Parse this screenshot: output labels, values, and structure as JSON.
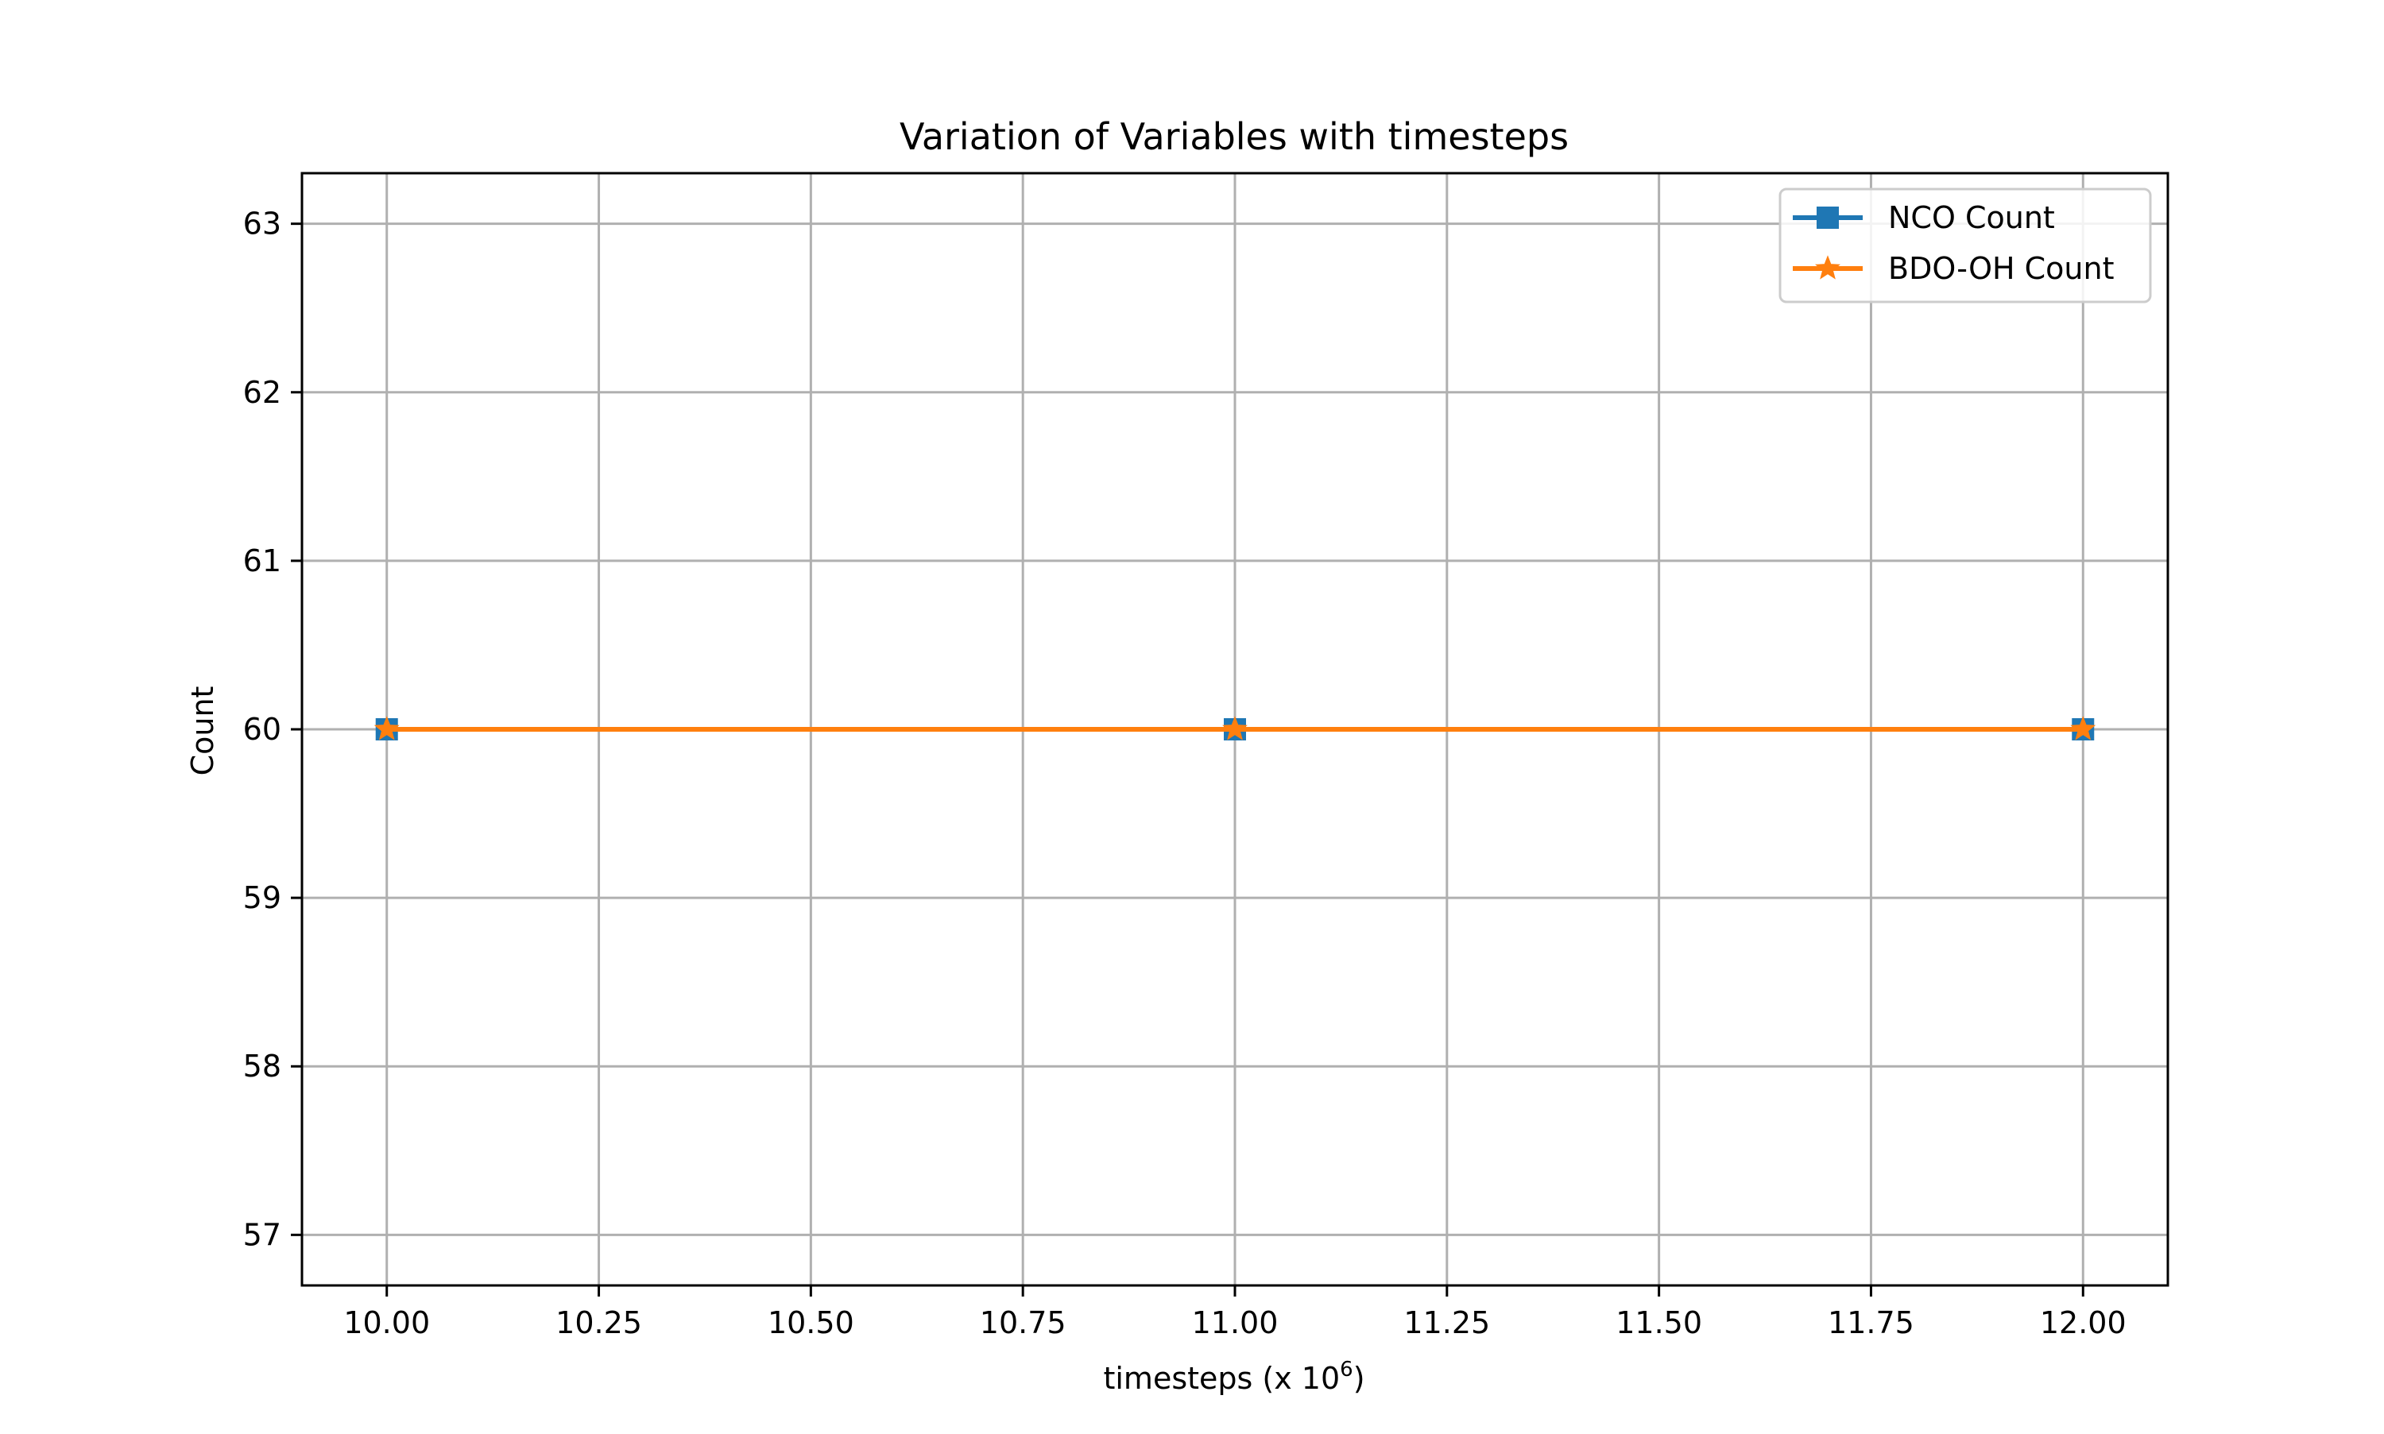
{
  "chart_data": {
    "type": "line",
    "title": "Variation of Variables with timesteps",
    "xlabel": "timesteps (x 10",
    "xlabel_superscript": "6",
    "xlabel_suffix": ")",
    "ylabel": "Count",
    "x": [
      10.0,
      11.0,
      12.0
    ],
    "xlim": [
      9.9,
      12.1
    ],
    "ylim": [
      56.7,
      63.3
    ],
    "xticks": [
      10.0,
      10.25,
      10.5,
      10.75,
      11.0,
      11.25,
      11.5,
      11.75,
      12.0
    ],
    "xtick_labels": [
      "10.00",
      "10.25",
      "10.50",
      "10.75",
      "11.00",
      "11.25",
      "11.50",
      "11.75",
      "12.00"
    ],
    "yticks": [
      57,
      58,
      59,
      60,
      61,
      62,
      63
    ],
    "ytick_labels": [
      "57",
      "58",
      "59",
      "60",
      "61",
      "62",
      "63"
    ],
    "grid": true,
    "legend_position": "top-right",
    "series": [
      {
        "name": "NCO Count",
        "values": [
          60,
          60,
          60
        ],
        "color": "#1f77b4",
        "marker": "square"
      },
      {
        "name": "BDO-OH Count",
        "values": [
          60,
          60,
          60
        ],
        "color": "#ff7f0e",
        "marker": "star"
      }
    ]
  }
}
